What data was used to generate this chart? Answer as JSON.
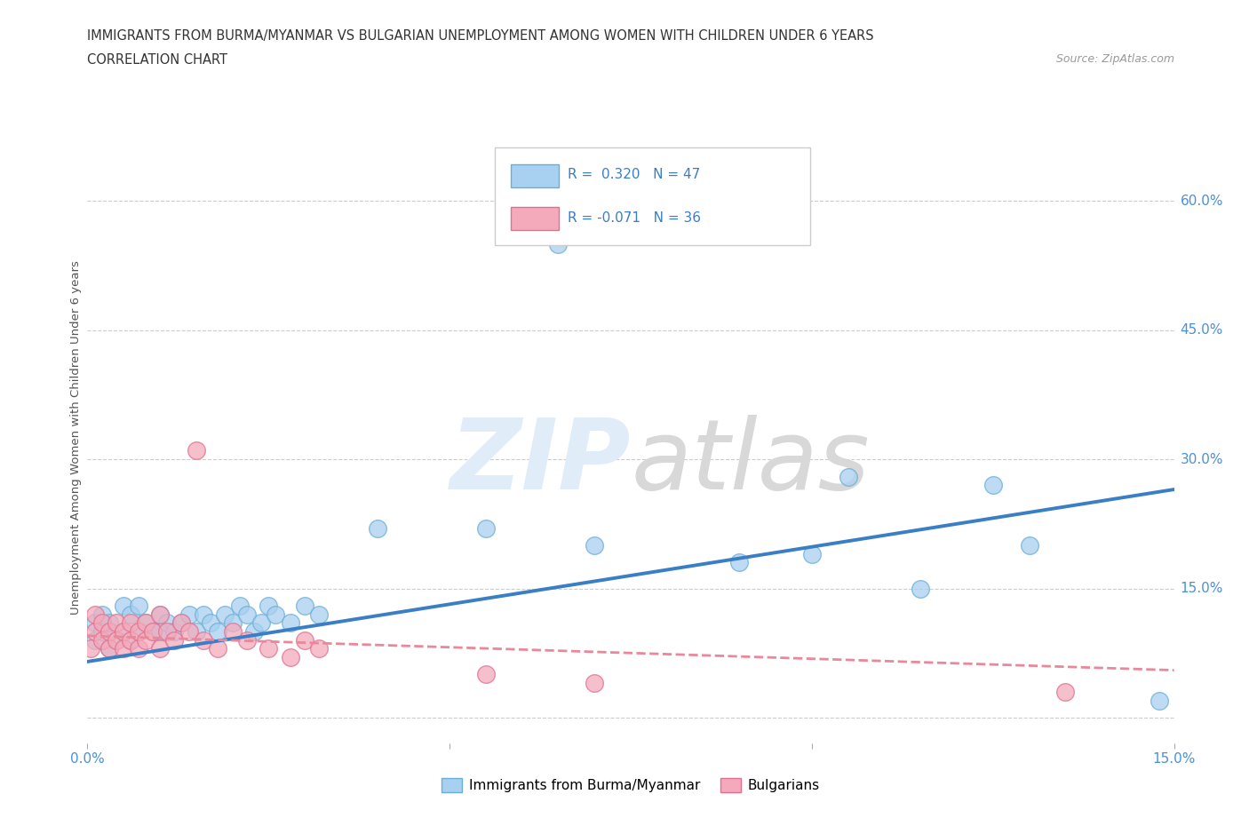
{
  "title": "IMMIGRANTS FROM BURMA/MYANMAR VS BULGARIAN UNEMPLOYMENT AMONG WOMEN WITH CHILDREN UNDER 6 YEARS",
  "subtitle": "CORRELATION CHART",
  "source": "Source: ZipAtlas.com",
  "ylabel": "Unemployment Among Women with Children Under 6 years",
  "xlim": [
    0.0,
    0.15
  ],
  "ylim": [
    -0.03,
    0.68
  ],
  "xtick_positions": [
    0.0,
    0.05,
    0.1,
    0.15
  ],
  "xtick_labels": [
    "0.0%",
    "",
    "",
    "15.0%"
  ],
  "ytick_positions": [
    0.0,
    0.15,
    0.3,
    0.45,
    0.6
  ],
  "ytick_labels": [
    "",
    "15.0%",
    "30.0%",
    "45.0%",
    "60.0%"
  ],
  "legend_r1": "R =  0.320",
  "legend_n1": "N = 47",
  "legend_r2": "R = -0.071",
  "legend_n2": "N = 36",
  "color_blue": "#A8D0F0",
  "color_blue_edge": "#6AAED6",
  "color_pink": "#F4AABB",
  "color_pink_edge": "#E07090",
  "color_blue_line": "#3A7EC6",
  "color_pink_line": "#E8889A",
  "background_color": "#FFFFFF",
  "blue_scatter_x": [
    0.001,
    0.001,
    0.002,
    0.002,
    0.003,
    0.003,
    0.004,
    0.005,
    0.005,
    0.006,
    0.006,
    0.007,
    0.007,
    0.008,
    0.009,
    0.01,
    0.01,
    0.011,
    0.012,
    0.013,
    0.014,
    0.015,
    0.016,
    0.017,
    0.018,
    0.019,
    0.02,
    0.021,
    0.022,
    0.023,
    0.024,
    0.025,
    0.026,
    0.028,
    0.03,
    0.032,
    0.04,
    0.055,
    0.065,
    0.07,
    0.09,
    0.1,
    0.105,
    0.115,
    0.125,
    0.13,
    0.148
  ],
  "blue_scatter_y": [
    0.09,
    0.11,
    0.1,
    0.12,
    0.08,
    0.11,
    0.09,
    0.1,
    0.13,
    0.09,
    0.12,
    0.1,
    0.13,
    0.11,
    0.1,
    0.1,
    0.12,
    0.11,
    0.1,
    0.11,
    0.12,
    0.1,
    0.12,
    0.11,
    0.1,
    0.12,
    0.11,
    0.13,
    0.12,
    0.1,
    0.11,
    0.13,
    0.12,
    0.11,
    0.13,
    0.12,
    0.22,
    0.22,
    0.55,
    0.2,
    0.18,
    0.19,
    0.28,
    0.15,
    0.27,
    0.2,
    0.02
  ],
  "pink_scatter_x": [
    0.0005,
    0.001,
    0.001,
    0.002,
    0.002,
    0.003,
    0.003,
    0.004,
    0.004,
    0.005,
    0.005,
    0.006,
    0.006,
    0.007,
    0.007,
    0.008,
    0.008,
    0.009,
    0.01,
    0.01,
    0.011,
    0.012,
    0.013,
    0.014,
    0.015,
    0.016,
    0.018,
    0.02,
    0.022,
    0.025,
    0.028,
    0.03,
    0.032,
    0.055,
    0.07,
    0.135
  ],
  "pink_scatter_y": [
    0.08,
    0.1,
    0.12,
    0.09,
    0.11,
    0.08,
    0.1,
    0.09,
    0.11,
    0.08,
    0.1,
    0.09,
    0.11,
    0.08,
    0.1,
    0.09,
    0.11,
    0.1,
    0.08,
    0.12,
    0.1,
    0.09,
    0.11,
    0.1,
    0.31,
    0.09,
    0.08,
    0.1,
    0.09,
    0.08,
    0.07,
    0.09,
    0.08,
    0.05,
    0.04,
    0.03
  ],
  "blue_line_x": [
    0.0,
    0.15
  ],
  "blue_line_y": [
    0.065,
    0.265
  ],
  "pink_line_x": [
    0.0,
    0.15
  ],
  "pink_line_y": [
    0.095,
    0.055
  ]
}
